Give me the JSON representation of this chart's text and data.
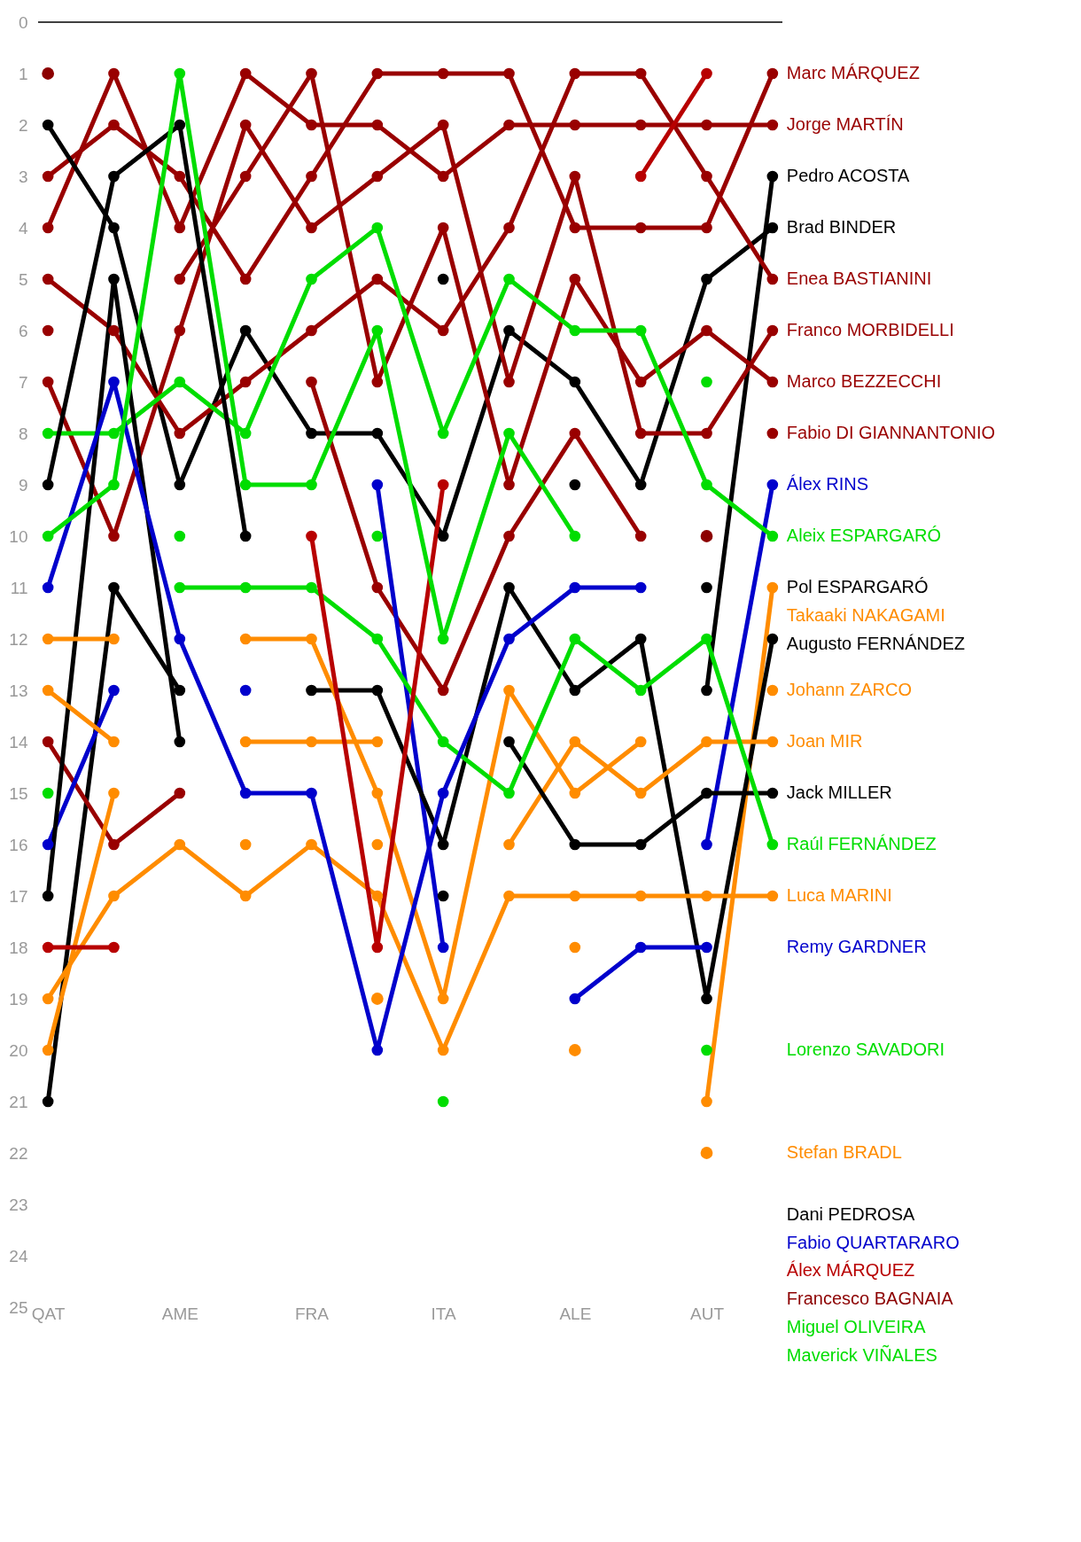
{
  "chart_data": {
    "type": "line",
    "categories": [
      "QAT",
      null,
      "AME",
      null,
      "FRA",
      null,
      "ITA",
      null,
      "ALE",
      null,
      "AUT",
      null
    ],
    "ylim": [
      25,
      0
    ],
    "yticks": [
      0,
      1,
      2,
      3,
      4,
      5,
      6,
      7,
      8,
      9,
      10,
      11,
      12,
      13,
      14,
      15,
      16,
      17,
      18,
      19,
      20,
      21,
      22,
      23,
      24,
      25
    ],
    "grid": false,
    "marker": "circle",
    "ref_lines": [
      {
        "axis": "y",
        "value": 0,
        "color": "#000000"
      }
    ],
    "series": [
      {
        "name": "Marc MÁRQUEZ",
        "color": "#990000",
        "values": [
          3,
          2,
          3,
          5,
          3,
          1,
          1,
          1,
          4,
          4,
          4,
          1
        ]
      },
      {
        "name": "Jorge MARTÍN",
        "color": "#990000",
        "values": [
          4,
          1,
          4,
          1,
          2,
          2,
          3,
          2,
          2,
          2,
          2,
          2
        ]
      },
      {
        "name": "Pedro ACOSTA",
        "color": "#000000",
        "values": [
          21,
          11,
          13,
          null,
          null,
          null,
          5,
          null,
          9,
          null,
          13,
          3
        ]
      },
      {
        "name": "Brad BINDER",
        "color": "#000000",
        "values": [
          2,
          4,
          9,
          6,
          8,
          8,
          10,
          6,
          7,
          9,
          5,
          4
        ]
      },
      {
        "name": "Enea BASTIANINI",
        "color": "#990000",
        "values": [
          5,
          6,
          8,
          7,
          6,
          5,
          6,
          4,
          1,
          1,
          3,
          5
        ]
      },
      {
        "name": "Franco MORBIDELLI",
        "color": "#990000",
        "values": [
          7,
          10,
          6,
          2,
          4,
          3,
          2,
          7,
          3,
          8,
          8,
          6
        ]
      },
      {
        "name": "Marco BEZZECCHI",
        "color": "#990000",
        "values": [
          6,
          null,
          5,
          3,
          1,
          7,
          4,
          9,
          5,
          7,
          6,
          7
        ]
      },
      {
        "name": "Fabio DI GIANNANTONIO",
        "color": "#990000",
        "values": [
          14,
          16,
          15,
          null,
          7,
          11,
          13,
          10,
          8,
          10,
          null,
          8
        ]
      },
      {
        "name": "Álex RINS",
        "color": "#0000cc",
        "values": [
          16,
          13,
          null,
          13,
          null,
          9,
          18,
          null,
          null,
          null,
          16,
          9
        ]
      },
      {
        "name": "Aleix ESPARGARÓ",
        "color": "#00dd00",
        "values": [
          8,
          8,
          7,
          8,
          5,
          4,
          8,
          5,
          6,
          6,
          9,
          10
        ]
      },
      {
        "name": "Pol ESPARGARÓ",
        "color": "#000000",
        "values": [
          9,
          3,
          2,
          10,
          null,
          null,
          null,
          null,
          null,
          null,
          11,
          null
        ]
      },
      {
        "name": "Takaaki NAKAGAMI",
        "color": "#ff8c00",
        "values": [
          20,
          15,
          null,
          16,
          null,
          16,
          null,
          null,
          18,
          null,
          21,
          11
        ]
      },
      {
        "name": "Augusto FERNÁNDEZ",
        "color": "#000000",
        "values": [
          17,
          5,
          14,
          null,
          13,
          13,
          16,
          11,
          13,
          12,
          19,
          12
        ]
      },
      {
        "name": "Johann ZARCO",
        "color": "#ff8c00",
        "values": [
          12,
          12,
          null,
          12,
          12,
          15,
          19,
          13,
          15,
          14,
          null,
          13
        ]
      },
      {
        "name": "Joan MIR",
        "color": "#ff8c00",
        "values": [
          13,
          14,
          null,
          14,
          14,
          14,
          null,
          16,
          14,
          15,
          14,
          14
        ]
      },
      {
        "name": "Jack MILLER",
        "color": "#000000",
        "values": [
          null,
          null,
          null,
          null,
          null,
          null,
          null,
          14,
          16,
          16,
          15,
          15
        ]
      },
      {
        "name": "Raúl FERNÁNDEZ",
        "color": "#00dd00",
        "values": [
          15,
          null,
          11,
          11,
          11,
          12,
          14,
          15,
          12,
          13,
          12,
          16
        ]
      },
      {
        "name": "Luca MARINI",
        "color": "#ff8c00",
        "values": [
          19,
          17,
          16,
          17,
          16,
          17,
          20,
          17,
          17,
          17,
          17,
          17
        ]
      },
      {
        "name": "Remy GARDNER",
        "color": "#0000cc",
        "values": [
          null,
          null,
          null,
          null,
          null,
          null,
          null,
          null,
          19,
          18,
          18,
          null
        ]
      },
      {
        "name": "Lorenzo SAVADORI",
        "color": "#00dd00",
        "values": [
          null,
          null,
          null,
          null,
          null,
          null,
          21,
          null,
          null,
          null,
          20,
          null
        ]
      },
      {
        "name": "Stefan BRADL",
        "type": "scatter",
        "color": "#ff8c00",
        "values": [
          null,
          null,
          null,
          null,
          null,
          19,
          null,
          null,
          20,
          null,
          22,
          null
        ]
      },
      {
        "name": "Dani PEDROSA",
        "color": "#000000",
        "values": [
          null,
          null,
          null,
          null,
          null,
          null,
          17,
          null,
          null,
          null,
          null,
          null
        ]
      },
      {
        "name": "Fabio QUARTARARO",
        "color": "#0000cc",
        "values": [
          11,
          7,
          12,
          15,
          15,
          20,
          15,
          12,
          11,
          11,
          null,
          null
        ]
      },
      {
        "name": "Álex MÁRQUEZ",
        "color": "#b80000",
        "values": [
          18,
          18,
          null,
          null,
          10,
          18,
          9,
          null,
          null,
          3,
          1,
          null
        ]
      },
      {
        "name": "Francesco BAGNAIA",
        "type": "scatter",
        "color": "#8c0000",
        "values": [
          1,
          null,
          null,
          null,
          null,
          null,
          null,
          null,
          null,
          null,
          10,
          null
        ]
      },
      {
        "name": "Miguel OLIVEIRA",
        "color": "#00dd00",
        "values": [
          null,
          null,
          10,
          null,
          null,
          10,
          null,
          null,
          null,
          null,
          null,
          null
        ]
      },
      {
        "name": "Maverick VIÑALES",
        "color": "#00dd00",
        "values": [
          10,
          9,
          1,
          9,
          9,
          6,
          12,
          8,
          10,
          null,
          7,
          null
        ]
      }
    ]
  }
}
